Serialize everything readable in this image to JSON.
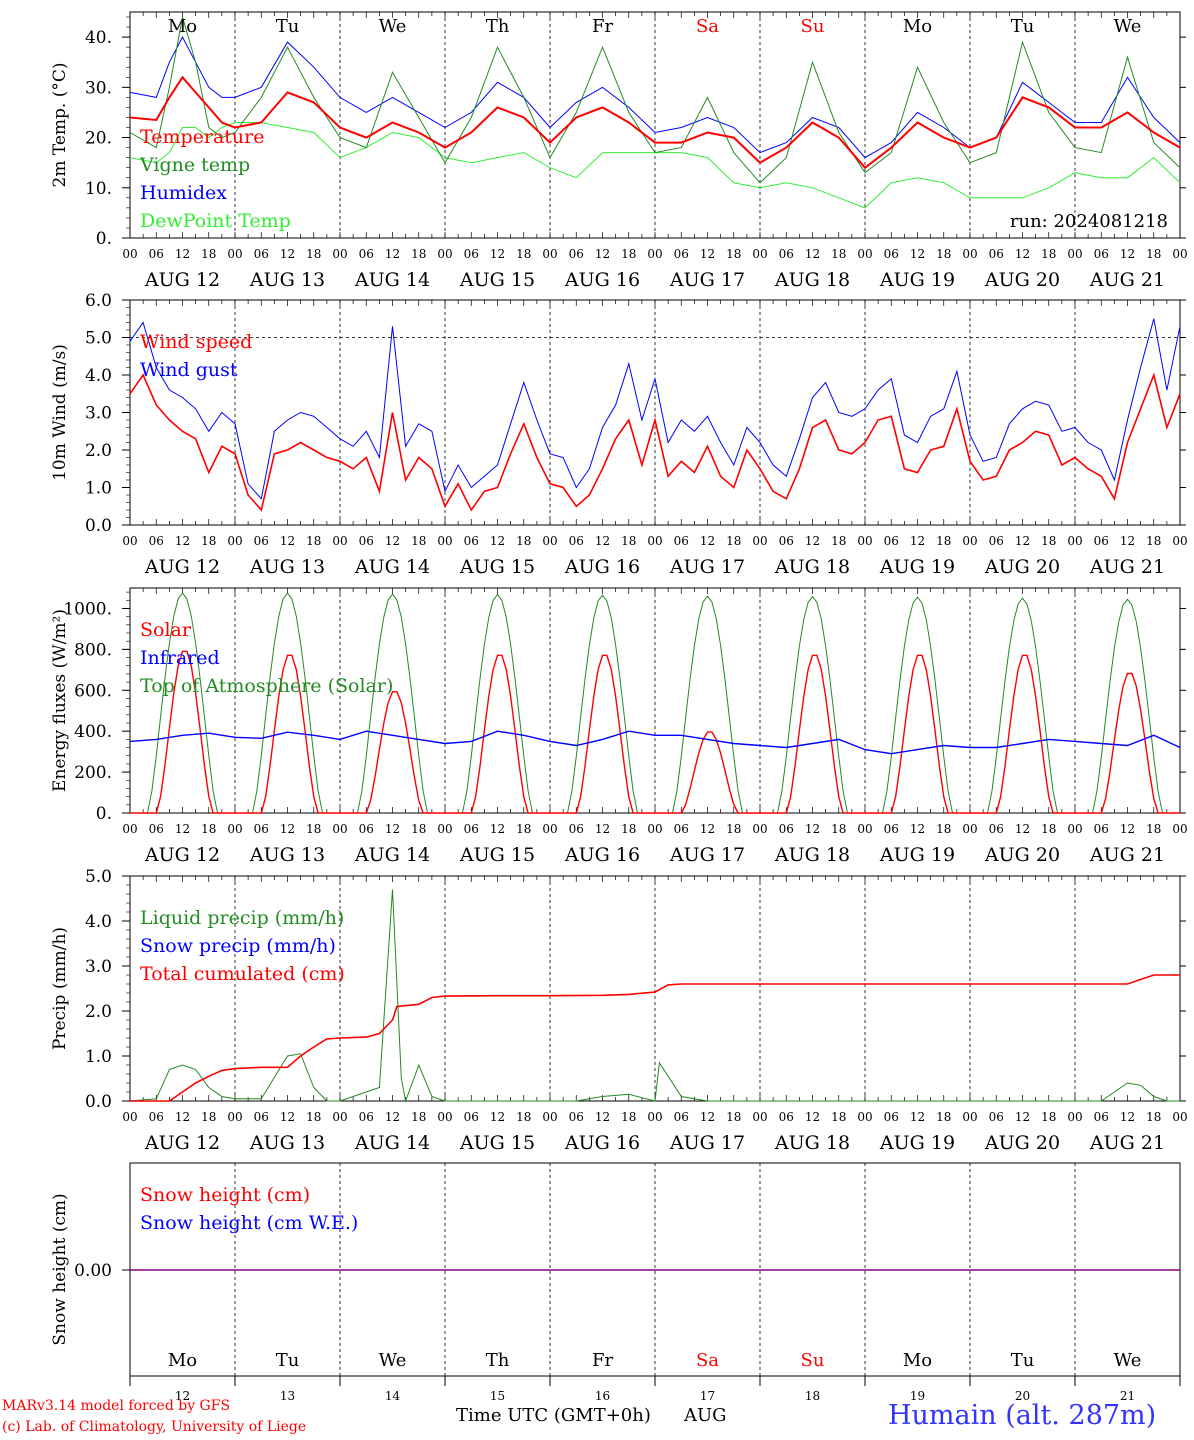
{
  "run_label": "run: 2024081218",
  "days": [
    "Mo",
    "Tu",
    "We",
    "Th",
    "Fr",
    "Sa",
    "Su",
    "Mo",
    "Tu",
    "We"
  ],
  "weekend_flags": [
    false,
    false,
    false,
    false,
    false,
    true,
    true,
    false,
    false,
    false
  ],
  "date_labels": [
    "AUG 12",
    "AUG 13",
    "AUG 14",
    "AUG 15",
    "AUG 16",
    "AUG 17",
    "AUG 18",
    "AUG 19",
    "AUG 20",
    "AUG 21"
  ],
  "day_numbers": [
    "12",
    "13",
    "14",
    "15",
    "16",
    "17",
    "18",
    "19",
    "20",
    "21"
  ],
  "hour_ticks": [
    "00",
    "06",
    "12",
    "18"
  ],
  "x_axis_title": "Time UTC (GMT+0h)",
  "x_axis_month": "AUG",
  "credit_line1": "MARv3.14 model forced by GFS",
  "credit_line2": "(c) Lab. of Climatology, University of Liege",
  "station": "Humain (alt. 287m)",
  "colors": {
    "red": "#ff0000",
    "darkgreen": "#228b22",
    "blue": "#0000ff",
    "lightgreen": "#33ee33",
    "purple": "#800080",
    "station": "#3333ff"
  },
  "chart_data": [
    {
      "type": "line",
      "ylabel": "2m Temp. (°C)",
      "ylim": [
        0,
        45
      ],
      "yticks": [
        0,
        10,
        20,
        30,
        40
      ],
      "ytick_labels": [
        "0.",
        "10.",
        "20.",
        "30.",
        "40."
      ],
      "x_unit": "hours from AUG 12 00 UTC",
      "x": [
        0,
        6,
        9,
        12,
        15,
        18,
        21,
        24,
        30,
        36,
        42,
        48,
        54,
        60,
        66,
        72,
        78,
        84,
        90,
        96,
        102,
        108,
        114,
        120,
        126,
        132,
        138,
        144,
        150,
        156,
        162,
        168,
        174,
        180,
        186,
        192,
        198,
        204,
        210,
        216,
        222,
        228,
        234,
        240
      ],
      "series": [
        {
          "name": "Temperature",
          "color": "#ff0000",
          "values": [
            24,
            23.5,
            28,
            32,
            29,
            26,
            23,
            22,
            23,
            29,
            27,
            22,
            20,
            23,
            21,
            18,
            21,
            26,
            24,
            19,
            24,
            26,
            23,
            19,
            19,
            21,
            20,
            15,
            18,
            23,
            20,
            14,
            18,
            23,
            20,
            18,
            20,
            28,
            26,
            22,
            22,
            25,
            21,
            18
          ]
        },
        {
          "name": "Vigne temp",
          "color": "#228b22",
          "values": [
            21,
            18,
            30,
            44,
            35,
            22,
            20,
            21,
            28,
            38,
            28,
            20,
            18,
            33,
            24,
            15,
            24,
            38,
            28,
            16,
            25,
            38,
            25,
            17,
            18,
            28,
            17,
            11,
            16,
            35,
            21,
            13,
            17,
            34,
            23,
            15,
            17,
            39,
            25,
            18,
            17,
            36,
            19,
            14
          ]
        },
        {
          "name": "Humidex",
          "color": "#0000ff",
          "values": [
            29,
            28,
            35,
            40,
            35,
            30,
            28,
            28,
            30,
            39,
            34,
            28,
            25,
            28,
            25,
            22,
            25,
            31,
            28,
            22,
            27,
            30,
            26,
            21,
            22,
            24,
            22,
            17,
            19,
            24,
            22,
            16,
            19,
            25,
            22,
            18,
            20,
            31,
            27,
            23,
            23,
            32,
            24,
            19
          ]
        },
        {
          "name": "DewPoint Temp",
          "color": "#33ee33",
          "values": [
            16,
            15,
            17,
            22,
            22,
            20,
            22,
            23,
            23,
            22,
            21,
            16,
            18,
            21,
            20,
            16,
            15,
            16,
            17,
            14,
            12,
            17,
            17,
            17,
            17,
            16,
            11,
            10,
            11,
            10,
            8,
            6,
            11,
            12,
            11,
            8,
            8,
            8,
            10,
            13,
            12,
            12,
            16,
            11
          ]
        }
      ]
    },
    {
      "type": "line",
      "ylabel": "10m Wind (m/s)",
      "ylim": [
        0,
        6
      ],
      "yticks": [
        0,
        1,
        2,
        3,
        4,
        5,
        6
      ],
      "ytick_labels": [
        "0.0",
        "1.0",
        "2.0",
        "3.0",
        "4.0",
        "5.0",
        "6.0"
      ],
      "x": [
        0,
        3,
        6,
        9,
        12,
        15,
        18,
        21,
        24,
        27,
        30,
        33,
        36,
        39,
        42,
        45,
        48,
        51,
        54,
        57,
        60,
        63,
        66,
        69,
        72,
        75,
        78,
        81,
        84,
        87,
        90,
        93,
        96,
        99,
        102,
        105,
        108,
        111,
        114,
        117,
        120,
        123,
        126,
        129,
        132,
        135,
        138,
        141,
        144,
        147,
        150,
        153,
        156,
        159,
        162,
        165,
        168,
        171,
        174,
        177,
        180,
        183,
        186,
        189,
        192,
        195,
        198,
        201,
        204,
        207,
        210,
        213,
        216,
        219,
        222,
        225,
        228,
        231,
        234,
        237,
        240
      ],
      "series": [
        {
          "name": "Wind speed",
          "color": "#ff0000",
          "values": [
            3.5,
            4.0,
            3.2,
            2.8,
            2.5,
            2.3,
            1.4,
            2.1,
            1.9,
            0.8,
            0.4,
            1.9,
            2.0,
            2.2,
            2.0,
            1.8,
            1.7,
            1.5,
            1.8,
            0.9,
            3.0,
            1.2,
            1.8,
            1.5,
            0.5,
            1.1,
            0.4,
            0.9,
            1.0,
            1.9,
            2.7,
            1.8,
            1.1,
            1.0,
            0.5,
            0.8,
            1.5,
            2.3,
            2.8,
            1.6,
            2.8,
            1.3,
            1.7,
            1.4,
            2.1,
            1.3,
            1.0,
            2.0,
            1.5,
            0.9,
            0.7,
            1.5,
            2.6,
            2.8,
            2.0,
            1.9,
            2.2,
            2.8,
            2.9,
            1.5,
            1.4,
            2.0,
            2.1,
            3.1,
            1.7,
            1.2,
            1.3,
            2.0,
            2.2,
            2.5,
            2.4,
            1.6,
            1.8,
            1.5,
            1.3,
            0.7,
            2.2,
            3.1,
            4.0,
            2.6,
            3.5
          ]
        },
        {
          "name": "Wind gust",
          "color": "#0000ff",
          "values": [
            4.9,
            5.4,
            4.2,
            3.6,
            3.4,
            3.1,
            2.5,
            3.0,
            2.7,
            1.1,
            0.7,
            2.5,
            2.8,
            3.0,
            2.9,
            2.6,
            2.3,
            2.1,
            2.5,
            1.8,
            5.3,
            2.1,
            2.7,
            2.5,
            0.9,
            1.6,
            1.0,
            1.3,
            1.6,
            2.7,
            3.8,
            2.8,
            1.9,
            1.8,
            1.0,
            1.5,
            2.6,
            3.2,
            4.3,
            2.8,
            3.9,
            2.2,
            2.8,
            2.5,
            2.9,
            2.2,
            1.6,
            2.6,
            2.2,
            1.6,
            1.3,
            2.3,
            3.4,
            3.8,
            3.0,
            2.9,
            3.1,
            3.6,
            3.9,
            2.4,
            2.2,
            2.9,
            3.1,
            4.1,
            2.4,
            1.7,
            1.8,
            2.7,
            3.1,
            3.3,
            3.2,
            2.5,
            2.6,
            2.2,
            2.0,
            1.2,
            2.8,
            4.2,
            5.5,
            3.6,
            5.3
          ]
        }
      ]
    },
    {
      "type": "line",
      "ylabel": "Energy fluxes (W/m²)",
      "ylim": [
        0,
        1100
      ],
      "yticks": [
        0,
        200,
        400,
        600,
        800,
        1000
      ],
      "ytick_labels": [
        "0.",
        "200.",
        "400.",
        "600.",
        "800.",
        "1000."
      ],
      "solar_peaks": [
        800,
        780,
        600,
        780,
        780,
        400,
        780,
        780,
        780,
        690
      ],
      "toa_peaks": [
        1075,
        1075,
        1070,
        1068,
        1065,
        1060,
        1058,
        1055,
        1050,
        1045
      ],
      "series": [
        {
          "name": "Solar",
          "color": "#ff0000"
        },
        {
          "name": "Infrared",
          "color": "#0000ff",
          "values": [
            350,
            360,
            380,
            390,
            370,
            365,
            395,
            380,
            360,
            400,
            380,
            360,
            340,
            350,
            400,
            380,
            350,
            330,
            360,
            400,
            380,
            380,
            360,
            340,
            330,
            320,
            340,
            360,
            310,
            290,
            310,
            330,
            320,
            320,
            340,
            360,
            350,
            340,
            330,
            380,
            320
          ]
        },
        {
          "name": "Top of Atmosphere (Solar)",
          "color": "#228b22"
        }
      ]
    },
    {
      "type": "line",
      "ylabel": "Precip (mm/h)",
      "ylim": [
        0,
        5
      ],
      "yticks": [
        0,
        1,
        2,
        3,
        4,
        5
      ],
      "ytick_labels": [
        "0.0",
        "1.0",
        "2.0",
        "3.0",
        "4.0",
        "5.0"
      ],
      "series": [
        {
          "name": "Liquid precip (mm/h)",
          "color": "#228b22",
          "x": [
            0,
            6,
            9,
            12,
            15,
            18,
            21,
            24,
            30,
            36,
            39,
            42,
            45,
            48,
            54,
            57,
            60,
            62,
            63,
            66,
            69,
            72,
            78,
            84,
            90,
            96,
            102,
            108,
            114,
            120,
            121,
            126,
            132,
            138,
            144,
            150,
            156,
            162,
            168,
            174,
            180,
            186,
            192,
            198,
            204,
            210,
            216,
            222,
            228,
            231,
            234,
            237,
            240
          ],
          "values": [
            0,
            0.05,
            0.7,
            0.8,
            0.7,
            0.3,
            0.1,
            0.05,
            0.05,
            1.0,
            1.05,
            0.3,
            0,
            0,
            0.2,
            0.3,
            4.7,
            0.5,
            0,
            0.8,
            0.1,
            0,
            0,
            0,
            0,
            0,
            0,
            0.1,
            0.15,
            0,
            0.85,
            0.1,
            0,
            0,
            0,
            0,
            0,
            0,
            0,
            0,
            0,
            0,
            0,
            0,
            0,
            0,
            0,
            0,
            0.4,
            0.35,
            0.1,
            0,
            0
          ]
        },
        {
          "name": "Snow precip (mm/h)",
          "color": "#0000ff",
          "values": []
        },
        {
          "name": "Total cumulated (cm)",
          "color": "#ff0000",
          "x": [
            0,
            9,
            12,
            15,
            18,
            21,
            24,
            30,
            36,
            39,
            42,
            45,
            48,
            54,
            57,
            60,
            61,
            63,
            66,
            69,
            72,
            84,
            96,
            108,
            114,
            120,
            123,
            126,
            132,
            144,
            156,
            168,
            180,
            192,
            204,
            216,
            222,
            228,
            231,
            234,
            240
          ],
          "values": [
            0,
            0,
            0.2,
            0.4,
            0.55,
            0.68,
            0.72,
            0.75,
            0.75,
            1.0,
            1.2,
            1.38,
            1.4,
            1.42,
            1.5,
            1.8,
            2.1,
            2.12,
            2.15,
            2.3,
            2.33,
            2.34,
            2.34,
            2.35,
            2.37,
            2.42,
            2.58,
            2.6,
            2.6,
            2.6,
            2.6,
            2.6,
            2.6,
            2.6,
            2.6,
            2.6,
            2.6,
            2.6,
            2.7,
            2.8,
            2.8
          ]
        }
      ]
    },
    {
      "type": "line",
      "ylabel": "Snow height (cm)",
      "ytick_labels": [
        "0.00"
      ],
      "series": [
        {
          "name": "Snow height (cm)",
          "color": "#ff0000",
          "values": [
            0,
            0
          ]
        },
        {
          "name": "Snow height (cm W.E.)",
          "color": "#0000ff",
          "values": [
            0,
            0
          ]
        }
      ]
    }
  ]
}
